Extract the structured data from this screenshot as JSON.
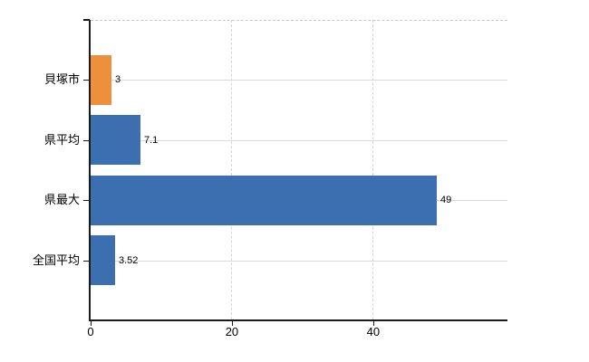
{
  "chart_data": {
    "type": "bar",
    "orientation": "horizontal",
    "categories": [
      "貝塚市",
      "県平均",
      "県最大",
      "全国平均"
    ],
    "values": [
      3,
      7.1,
      49,
      3.52
    ],
    "value_labels": [
      "3",
      "7.1",
      "49",
      "3.52"
    ],
    "bar_colors": [
      "#ee8f3c",
      "#3c6fb0",
      "#3c6fb0",
      "#3c6fb0"
    ],
    "xlim": [
      0,
      59
    ],
    "xticks": [
      0,
      20,
      40
    ],
    "xtick_labels": [
      "0",
      "20",
      "40"
    ],
    "grid": {
      "horizontal_style": "solid",
      "vertical_style": "dashed",
      "top_border_style": "dashed"
    },
    "legend_position": "none"
  },
  "colors": {
    "bar_blue": "#3c6fb0",
    "bar_orange": "#ee8f3c",
    "axis": "#1a1a1a",
    "gridline_solid": "#d9d9d9",
    "gridline_dashed": "#d4d4d4",
    "top_border": "#c9c9c9",
    "text": "#000000",
    "background": "#ffffff"
  }
}
